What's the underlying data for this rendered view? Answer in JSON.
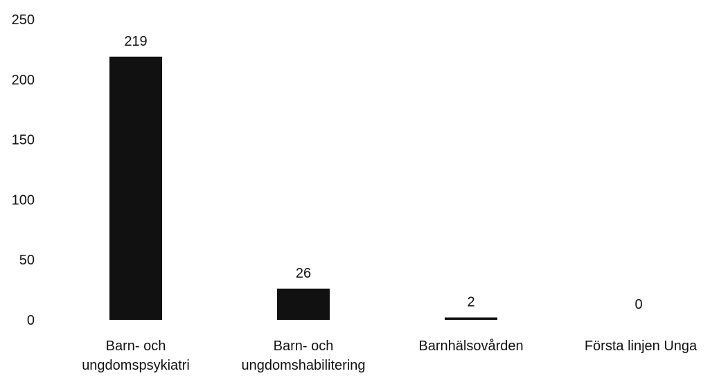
{
  "chart_data": {
    "type": "bar",
    "categories": [
      [
        "Barn- och",
        "ungdomspsykiatri"
      ],
      [
        "Barn- och",
        "ungdomshabilitering"
      ],
      [
        "Barnhälsovården"
      ],
      [
        "Första linjen Unga"
      ]
    ],
    "values": [
      219,
      26,
      2,
      0
    ],
    "data_labels": [
      "219",
      "26",
      "2",
      "0"
    ],
    "ylim": [
      0,
      250
    ],
    "yticks": [
      0,
      50,
      100,
      150,
      200,
      250
    ],
    "ytick_labels": [
      "0",
      "50",
      "100",
      "150",
      "200",
      "250"
    ],
    "grid": false,
    "legend": "none",
    "title": "",
    "xlabel": "",
    "ylabel": "",
    "bar_color": "#111111"
  }
}
